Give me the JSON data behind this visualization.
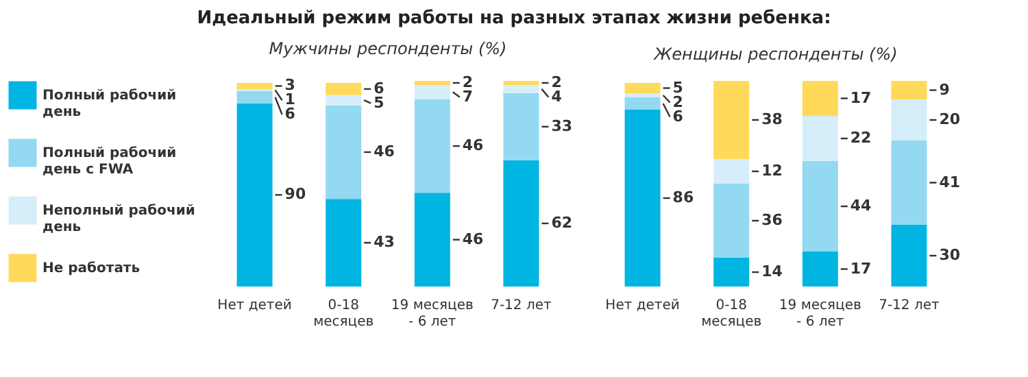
{
  "chart_data": [
    {
      "type": "bar",
      "title": "Идеальный режим работы на разных этапах жизни ребенка:",
      "subtitle": "Мужчины респонденты (%)",
      "categories": [
        "Нет детей",
        "0-18 месяцев",
        "19 месяцев - 6 лет",
        "7-12 лет"
      ],
      "stacked": true,
      "data_labels": true,
      "legend": "left",
      "grid": false,
      "series": [
        {
          "name": "Полный рабочий день",
          "color": "#00b5e2",
          "values": [
            90,
            43,
            46,
            62
          ]
        },
        {
          "name": "Полный рабочий день с FWA",
          "color": "#93d9f1",
          "values": [
            6,
            46,
            46,
            33
          ]
        },
        {
          "name": "Неполный рабочий день",
          "color": "#d5eef9",
          "values": [
            1,
            5,
            7,
            4
          ]
        },
        {
          "name": "Не работать",
          "color": "#ffd95a",
          "values": [
            3,
            6,
            2,
            2
          ]
        }
      ]
    },
    {
      "type": "bar",
      "subtitle": "Женщины респонденты (%)",
      "categories": [
        "Нет детей",
        "0-18 месяцев",
        "19 месяцев - 6 лет",
        "7-12 лет"
      ],
      "stacked": true,
      "data_labels": true,
      "legend": false,
      "grid": false,
      "series": [
        {
          "name": "Полный рабочий день",
          "color": "#00b5e2",
          "values": [
            86,
            14,
            17,
            30
          ]
        },
        {
          "name": "Полный рабочий день с FWA",
          "color": "#93d9f1",
          "values": [
            6,
            36,
            44,
            41
          ]
        },
        {
          "name": "Неполный рабочий день",
          "color": "#d5eef9",
          "values": [
            2,
            12,
            22,
            20
          ]
        },
        {
          "name": "Не работать",
          "color": "#ffd95a",
          "values": [
            5,
            38,
            17,
            9
          ]
        }
      ]
    }
  ]
}
